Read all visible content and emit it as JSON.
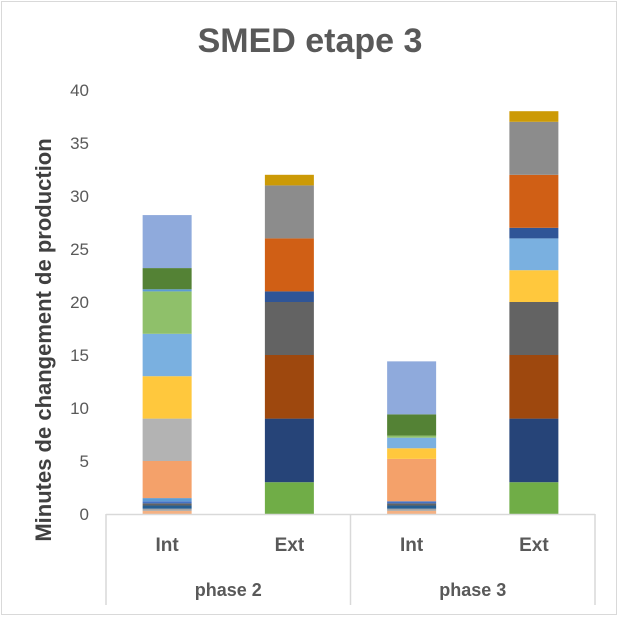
{
  "chart_data": {
    "type": "bar",
    "stacked": true,
    "title": "SMED etape 3",
    "ylabel": "Minutes  de changement de production",
    "xlabel": "",
    "ylim": [
      0,
      40
    ],
    "yticks": [
      0,
      5,
      10,
      15,
      20,
      25,
      30,
      35,
      40
    ],
    "grid": false,
    "legend": "none",
    "groups": [
      {
        "label": "phase 2",
        "categories": [
          "Int",
          "Ext"
        ]
      },
      {
        "label": "phase 3",
        "categories": [
          "Int",
          "Ext"
        ]
      }
    ],
    "bars": [
      {
        "group": "phase 2",
        "category": "Int",
        "segments": [
          {
            "value": 0.3,
            "color": "#f4b183"
          },
          {
            "value": 0.2,
            "color": "#a5a5a5"
          },
          {
            "value": 0.3,
            "color": "#255e91"
          },
          {
            "value": 0.2,
            "color": "#636363"
          },
          {
            "value": 0.2,
            "color": "#4472c4"
          },
          {
            "value": 0.3,
            "color": "#5b9bd5"
          },
          {
            "value": 3.5,
            "color": "#f4a16a"
          },
          {
            "value": 4.0,
            "color": "#b3b3b3"
          },
          {
            "value": 4.0,
            "color": "#ffc83d"
          },
          {
            "value": 4.0,
            "color": "#7ab0e0"
          },
          {
            "value": 4.0,
            "color": "#8fc06a"
          },
          {
            "value": 0.2,
            "color": "#5b9bd5"
          },
          {
            "value": 2.0,
            "color": "#548235"
          },
          {
            "value": 5.0,
            "color": "#8faadc"
          }
        ]
      },
      {
        "group": "phase 2",
        "category": "Ext",
        "segments": [
          {
            "value": 3.0,
            "color": "#70ad47"
          },
          {
            "value": 6.0,
            "color": "#264478"
          },
          {
            "value": 6.0,
            "color": "#9e480e"
          },
          {
            "value": 5.0,
            "color": "#636363"
          },
          {
            "value": 1.0,
            "color": "#2f5597"
          },
          {
            "value": 5.0,
            "color": "#d05f15"
          },
          {
            "value": 5.0,
            "color": "#8c8c8c"
          },
          {
            "value": 1.0,
            "color": "#cc9a06"
          }
        ]
      },
      {
        "group": "phase 3",
        "category": "Int",
        "segments": [
          {
            "value": 0.3,
            "color": "#f4b183"
          },
          {
            "value": 0.2,
            "color": "#a5a5a5"
          },
          {
            "value": 0.3,
            "color": "#255e91"
          },
          {
            "value": 0.2,
            "color": "#636363"
          },
          {
            "value": 0.2,
            "color": "#4472c4"
          },
          {
            "value": 4.0,
            "color": "#f4a16a"
          },
          {
            "value": 1.0,
            "color": "#ffc83d"
          },
          {
            "value": 1.0,
            "color": "#7ab0e0"
          },
          {
            "value": 0.2,
            "color": "#8fc06a"
          },
          {
            "value": 2.0,
            "color": "#548235"
          },
          {
            "value": 5.0,
            "color": "#8faadc"
          }
        ]
      },
      {
        "group": "phase 3",
        "category": "Ext",
        "segments": [
          {
            "value": 3.0,
            "color": "#70ad47"
          },
          {
            "value": 6.0,
            "color": "#264478"
          },
          {
            "value": 6.0,
            "color": "#9e480e"
          },
          {
            "value": 5.0,
            "color": "#636363"
          },
          {
            "value": 3.0,
            "color": "#ffc83d"
          },
          {
            "value": 3.0,
            "color": "#7ab0e0"
          },
          {
            "value": 1.0,
            "color": "#2f5597"
          },
          {
            "value": 5.0,
            "color": "#d05f15"
          },
          {
            "value": 5.0,
            "color": "#8c8c8c"
          },
          {
            "value": 1.0,
            "color": "#cc9a06"
          }
        ]
      }
    ]
  }
}
